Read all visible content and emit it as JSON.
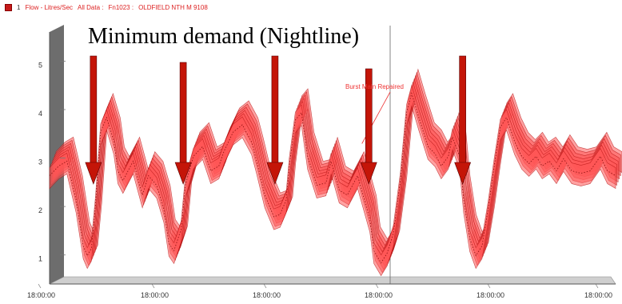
{
  "legend": {
    "series_number": "1",
    "series_label": "Flow - Litres/Sec",
    "data_range": "All Data :",
    "meter_id": "Fn1023 :",
    "site_name": "OLDFIELD NTH M 9108"
  },
  "headline": "Minimum demand (Nightline)",
  "colors": {
    "series": "#ff5555",
    "series_edge": "#b01010",
    "arrow": "#c41508",
    "grid": "#9a9a9a"
  },
  "chart_data": {
    "type": "area",
    "title": "Minimum demand (Nightline)",
    "ylabel": "",
    "xlabel": "",
    "ylim": [
      0.5,
      5.7
    ],
    "y_ticks": [
      "1",
      "2",
      "3",
      "4",
      "5"
    ],
    "x_tick_labels": [
      "18:00:00",
      "18:00:00",
      "18:00:00",
      "18:00:00",
      "18:00:00",
      "18:00:00"
    ],
    "grid": false,
    "series": [
      {
        "name": "Flow - Litres/Sec",
        "x": [
          0,
          0.09,
          0.17,
          0.26,
          0.33,
          0.37,
          0.41,
          0.45,
          0.5,
          0.56,
          0.63,
          0.67,
          0.72,
          0.82,
          0.91,
          0.97,
          1.05,
          1.12,
          1.17,
          1.22,
          1.29,
          1.33,
          1.41,
          1.5,
          1.58,
          1.66,
          1.71,
          1.8,
          1.89,
          1.98,
          2.03,
          2.11,
          2.2,
          2.26,
          2.32,
          2.35,
          2.41,
          2.47,
          2.53,
          2.62,
          2.71,
          2.76,
          2.84,
          2.92,
          3.02,
          3.06,
          3.14,
          3.18,
          3.25,
          3.31,
          3.37,
          3.44,
          3.5,
          3.55,
          3.62,
          3.71,
          3.78,
          3.84,
          3.91,
          3.95,
          4.02,
          4.06,
          4.12,
          4.18,
          4.24,
          4.3,
          4.36,
          4.42,
          4.48,
          4.56,
          4.63,
          4.7,
          4.77,
          4.83,
          4.9,
          4.97,
          5.04,
          5.12,
          5.21,
          5.3,
          5.4,
          5.47,
          5.55
        ],
        "values": [
          2.9,
          3.1,
          3.2,
          2.4,
          1.45,
          1.25,
          1.4,
          2.3,
          3.8,
          4.1,
          3.6,
          3.0,
          2.8,
          3.2,
          2.5,
          2.9,
          2.7,
          2.2,
          1.5,
          1.35,
          1.8,
          2.7,
          3.3,
          3.5,
          3.0,
          3.1,
          3.4,
          3.8,
          3.95,
          3.6,
          3.2,
          2.5,
          2.05,
          2.1,
          2.4,
          3.1,
          4.05,
          4.2,
          3.3,
          2.7,
          2.75,
          3.2,
          2.6,
          2.5,
          2.9,
          2.6,
          2.0,
          1.35,
          1.1,
          1.3,
          1.7,
          2.8,
          4.2,
          4.6,
          4.1,
          3.5,
          3.35,
          3.1,
          3.3,
          3.7,
          3.3,
          2.4,
          1.6,
          1.25,
          1.45,
          2.2,
          3.1,
          3.9,
          4.1,
          3.6,
          3.3,
          3.15,
          3.3,
          3.1,
          3.2,
          3.0,
          3.25,
          3.0,
          2.95,
          3.0,
          3.3,
          3.0,
          2.9
        ]
      }
    ],
    "annotations": [
      {
        "text": "Burst Main Repaired",
        "x": 3.0,
        "y": 3.1
      }
    ],
    "arrow_targets_x": [
      0.43,
      1.31,
      2.21,
      3.13,
      4.05
    ]
  }
}
